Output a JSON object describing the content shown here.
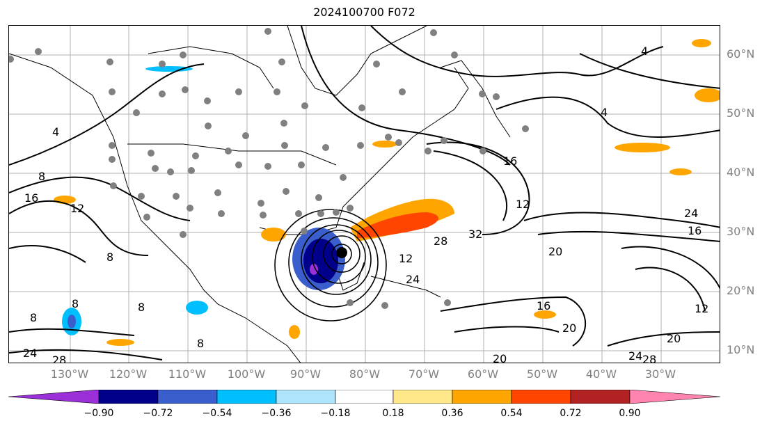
{
  "title": "2024100700 F072",
  "lat_labels": [
    "60°N",
    "50°N",
    "40°N",
    "30°N",
    "20°N",
    "10°N"
  ],
  "lon_labels": [
    "130°W",
    "120°W",
    "110°W",
    "100°W",
    "90°W",
    "80°W",
    "70°W",
    "60°W",
    "50°W",
    "40°W",
    "30°W"
  ],
  "contour_labels": [
    "4",
    "4",
    "4",
    "8",
    "16",
    "12",
    "8",
    "8",
    "8",
    "12",
    "16",
    "24",
    "16",
    "32",
    "28",
    "12",
    "24",
    "20",
    "16",
    "20",
    "20",
    "24",
    "28",
    "12",
    "24",
    "28",
    "20",
    "8",
    "8"
  ],
  "colorbar": {
    "ticks": [
      "−0.90",
      "−0.72",
      "−0.54",
      "−0.36",
      "−0.18",
      "0.18",
      "0.36",
      "0.54",
      "0.72",
      "0.90"
    ],
    "colors": [
      "#9b30d9",
      "#00008b",
      "#3a5fcd",
      "#00bfff",
      "#aee5fb",
      "#ffffff",
      "#ffe88a",
      "#ffa500",
      "#ff4500",
      "#b22222",
      "#ff85b0"
    ]
  }
}
